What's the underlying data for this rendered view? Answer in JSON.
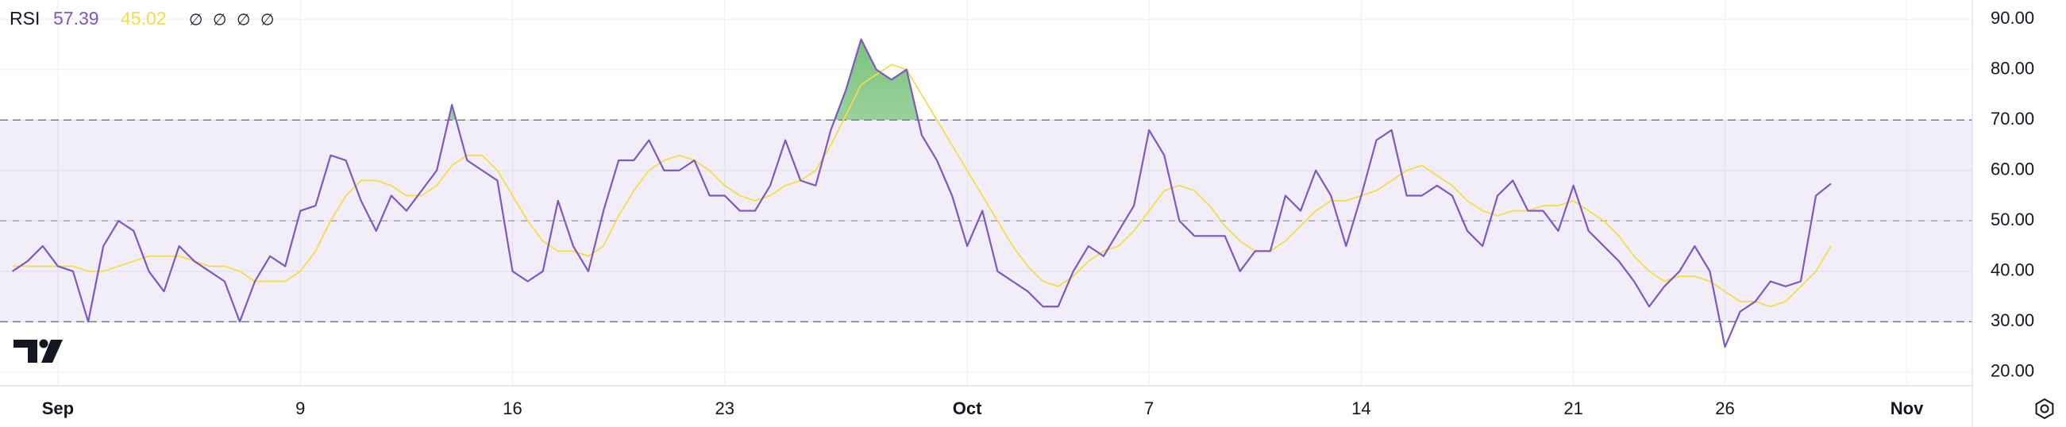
{
  "chart_data": {
    "type": "line",
    "status_symbols": [
      "∅",
      "∅",
      "∅",
      "∅"
    ],
    "x": [
      -1.5,
      -1,
      -0.5,
      0,
      0.5,
      1,
      1.5,
      2,
      2.5,
      3,
      3.5,
      4,
      4.5,
      5,
      5.5,
      6,
      6.5,
      7,
      7.5,
      8,
      8.5,
      9,
      9.5,
      10,
      10.5,
      11,
      11.5,
      12,
      12.5,
      13,
      13.5,
      14,
      14.5,
      15,
      15.5,
      16,
      16.5,
      17,
      17.5,
      18,
      18.5,
      19,
      19.5,
      20,
      20.5,
      21,
      21.5,
      22,
      22.5,
      23,
      23.5,
      24,
      24.5,
      25,
      25.5,
      26,
      26.5,
      27,
      27.5,
      28,
      28.5,
      29,
      29.5,
      30,
      30.5,
      31,
      31.5,
      32,
      32.5,
      33,
      33.5,
      34,
      34.5,
      35,
      35.5,
      36,
      36.5,
      37,
      37.5,
      38,
      38.5,
      39,
      39.5,
      40,
      40.5,
      41,
      41.5,
      42,
      42.5,
      43,
      43.5,
      44,
      44.5,
      45,
      45.5,
      46,
      46.5,
      47,
      47.5,
      48,
      48.5,
      49,
      49.5,
      50,
      50.5,
      51,
      51.5,
      52,
      52.5,
      53,
      53.5,
      54,
      54.5,
      55,
      55.5,
      56,
      56.5,
      57,
      57.5,
      58,
      58.5
    ],
    "series": [
      {
        "name": "RSI",
        "color": "#7e57c2",
        "values": [
          40,
          42,
          45,
          41,
          40,
          30,
          45,
          50,
          48,
          40,
          36,
          45,
          42,
          40,
          38,
          30,
          38,
          43,
          41,
          52,
          53,
          63,
          62,
          54,
          48,
          55,
          52,
          56,
          60,
          73,
          62,
          60,
          58,
          40,
          38,
          40,
          54,
          45,
          40,
          52,
          62,
          62,
          66,
          60,
          60,
          62,
          55,
          55,
          52,
          52,
          57,
          66,
          58,
          57,
          68,
          76,
          86,
          80,
          78,
          80,
          67,
          62,
          55,
          45,
          52,
          40,
          38,
          36,
          33,
          33,
          40,
          45,
          43,
          48,
          53,
          68,
          63,
          50,
          47,
          47,
          47,
          40,
          44,
          44,
          55,
          52,
          60,
          55,
          45,
          55,
          66,
          68,
          55,
          55,
          57,
          55,
          48,
          45,
          55,
          58,
          52,
          52,
          48,
          57,
          48,
          45,
          42,
          38,
          33,
          37,
          40,
          45,
          40,
          25,
          32,
          34,
          38,
          37,
          38,
          55,
          57.39
        ]
      },
      {
        "color": "#f5dc4a",
        "values": [
          41,
          41,
          41,
          41,
          41,
          40,
          40,
          41,
          42,
          43,
          43,
          43,
          42,
          41,
          41,
          40,
          38,
          38,
          38,
          40,
          44,
          50,
          55,
          58,
          58,
          57,
          55,
          55,
          57,
          61,
          63,
          63,
          60,
          55,
          50,
          46,
          44,
          44,
          43,
          45,
          51,
          56,
          60,
          62,
          63,
          62,
          60,
          57,
          55,
          54,
          55,
          57,
          58,
          60,
          65,
          71,
          77,
          79,
          81,
          80,
          75,
          70,
          65,
          60,
          55,
          50,
          45,
          41,
          38,
          37,
          39,
          42,
          44,
          45,
          48,
          52,
          56,
          57,
          56,
          53,
          49,
          46,
          44,
          44,
          46,
          49,
          52,
          54,
          54,
          55,
          56,
          58,
          60,
          61,
          59,
          57,
          54,
          52,
          51,
          52,
          52,
          53,
          53,
          54,
          52,
          50,
          47,
          43,
          40,
          38,
          39,
          39,
          38,
          36,
          34,
          34,
          33,
          34,
          37,
          40,
          45.02
        ]
      }
    ],
    "bands": {
      "upper": 70,
      "middle": 50,
      "lower": 30,
      "color": "#7e57c2",
      "overbought_color": "#4caf50"
    },
    "xlim": [
      -1.91,
      63.16
    ],
    "xticks": [
      {
        "value": 0,
        "label": "Sep"
      },
      {
        "value": 8,
        "label": "9"
      },
      {
        "value": 15,
        "label": "16"
      },
      {
        "value": 22,
        "label": "23"
      },
      {
        "value": 30,
        "label": "Oct"
      },
      {
        "value": 36,
        "label": "7"
      },
      {
        "value": 43,
        "label": "14"
      },
      {
        "value": 50,
        "label": "21"
      },
      {
        "value": 55,
        "label": "26"
      },
      {
        "value": 61,
        "label": "Nov"
      }
    ],
    "ylim": [
      17.3,
      93.8
    ],
    "yticks": [
      {
        "value": 20,
        "label": "20.00"
      },
      {
        "value": 30,
        "label": "30.00"
      },
      {
        "value": 40,
        "label": "40.00"
      },
      {
        "value": 50,
        "label": "50.00"
      },
      {
        "value": 60,
        "label": "60.00"
      },
      {
        "value": 70,
        "label": "70.00"
      },
      {
        "value": 80,
        "label": "80.00"
      },
      {
        "value": 90,
        "label": "90.00"
      }
    ],
    "grid": true
  }
}
